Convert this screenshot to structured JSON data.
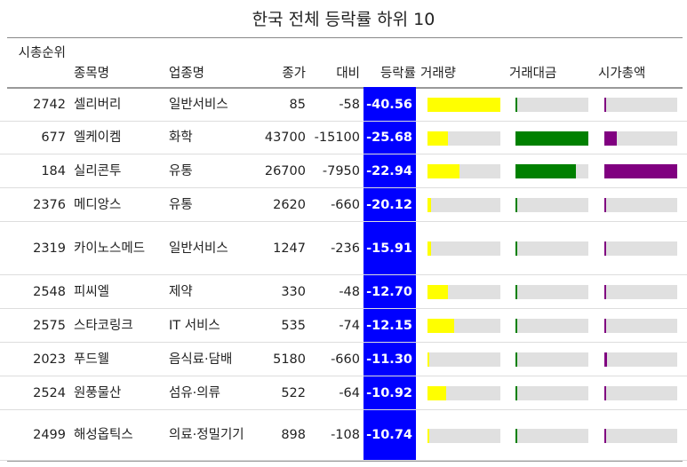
{
  "title": "한국 전체 등락률 하위 10",
  "colors": {
    "rate_bg": "#0000ff",
    "volume": "#ffff00",
    "trading_value": "#008000",
    "market_cap": "#800080",
    "track": "#e0e0e0"
  },
  "headers": {
    "rank": "시총순위",
    "name": "종목명",
    "industry": "업종명",
    "price": "종가",
    "diff": "대비",
    "pct": "등락률",
    "volume": "거래량",
    "trading_value": "거래대금",
    "market_cap": "시가총액"
  },
  "rows": [
    {
      "rank": "2742",
      "name": "셀리버리",
      "industry": "일반서비스",
      "price": "85",
      "diff": "-58",
      "pct": "-40.56",
      "volume": 1.0,
      "trading_value": 0.015,
      "market_cap": 0.012
    },
    {
      "rank": "677",
      "name": "엘케이켐",
      "industry": "화학",
      "price": "43700",
      "diff": "-15100",
      "pct": "-25.68",
      "volume": 0.28,
      "trading_value": 1.0,
      "market_cap": 0.17
    },
    {
      "rank": "184",
      "name": "실리콘투",
      "industry": "유통",
      "price": "26700",
      "diff": "-7950",
      "pct": "-22.94",
      "volume": 0.44,
      "trading_value": 0.83,
      "market_cap": 1.0
    },
    {
      "rank": "2376",
      "name": "메디앙스",
      "industry": "유통",
      "price": "2620",
      "diff": "-660",
      "pct": "-20.12",
      "volume": 0.05,
      "trading_value": 0.015,
      "market_cap": 0.015
    },
    {
      "rank": "2319",
      "name": "카이노스메드",
      "industry": "일반서비스",
      "price": "1247",
      "diff": "-236",
      "pct": "-15.91",
      "volume": 0.05,
      "trading_value": 0.015,
      "market_cap": 0.02
    },
    {
      "rank": "2548",
      "name": "피씨엘",
      "industry": "제약",
      "price": "330",
      "diff": "-48",
      "pct": "-12.70",
      "volume": 0.28,
      "trading_value": 0.012,
      "market_cap": 0.012
    },
    {
      "rank": "2575",
      "name": "스타코링크",
      "industry": "IT 서비스",
      "price": "535",
      "diff": "-74",
      "pct": "-12.15",
      "volume": 0.37,
      "trading_value": 0.012,
      "market_cap": 0.012
    },
    {
      "rank": "2023",
      "name": "푸드웰",
      "industry": "음식료·담배",
      "price": "5180",
      "diff": "-660",
      "pct": "-11.30",
      "volume": 0.03,
      "trading_value": 0.012,
      "market_cap": 0.035
    },
    {
      "rank": "2524",
      "name": "원풍물산",
      "industry": "섬유·의류",
      "price": "522",
      "diff": "-64",
      "pct": "-10.92",
      "volume": 0.26,
      "trading_value": 0.012,
      "market_cap": 0.012
    },
    {
      "rank": "2499",
      "name": "해성옵틱스",
      "industry": "의료·정밀기기",
      "price": "898",
      "diff": "-108",
      "pct": "-10.74",
      "volume": 0.03,
      "trading_value": 0.012,
      "market_cap": 0.015
    }
  ]
}
